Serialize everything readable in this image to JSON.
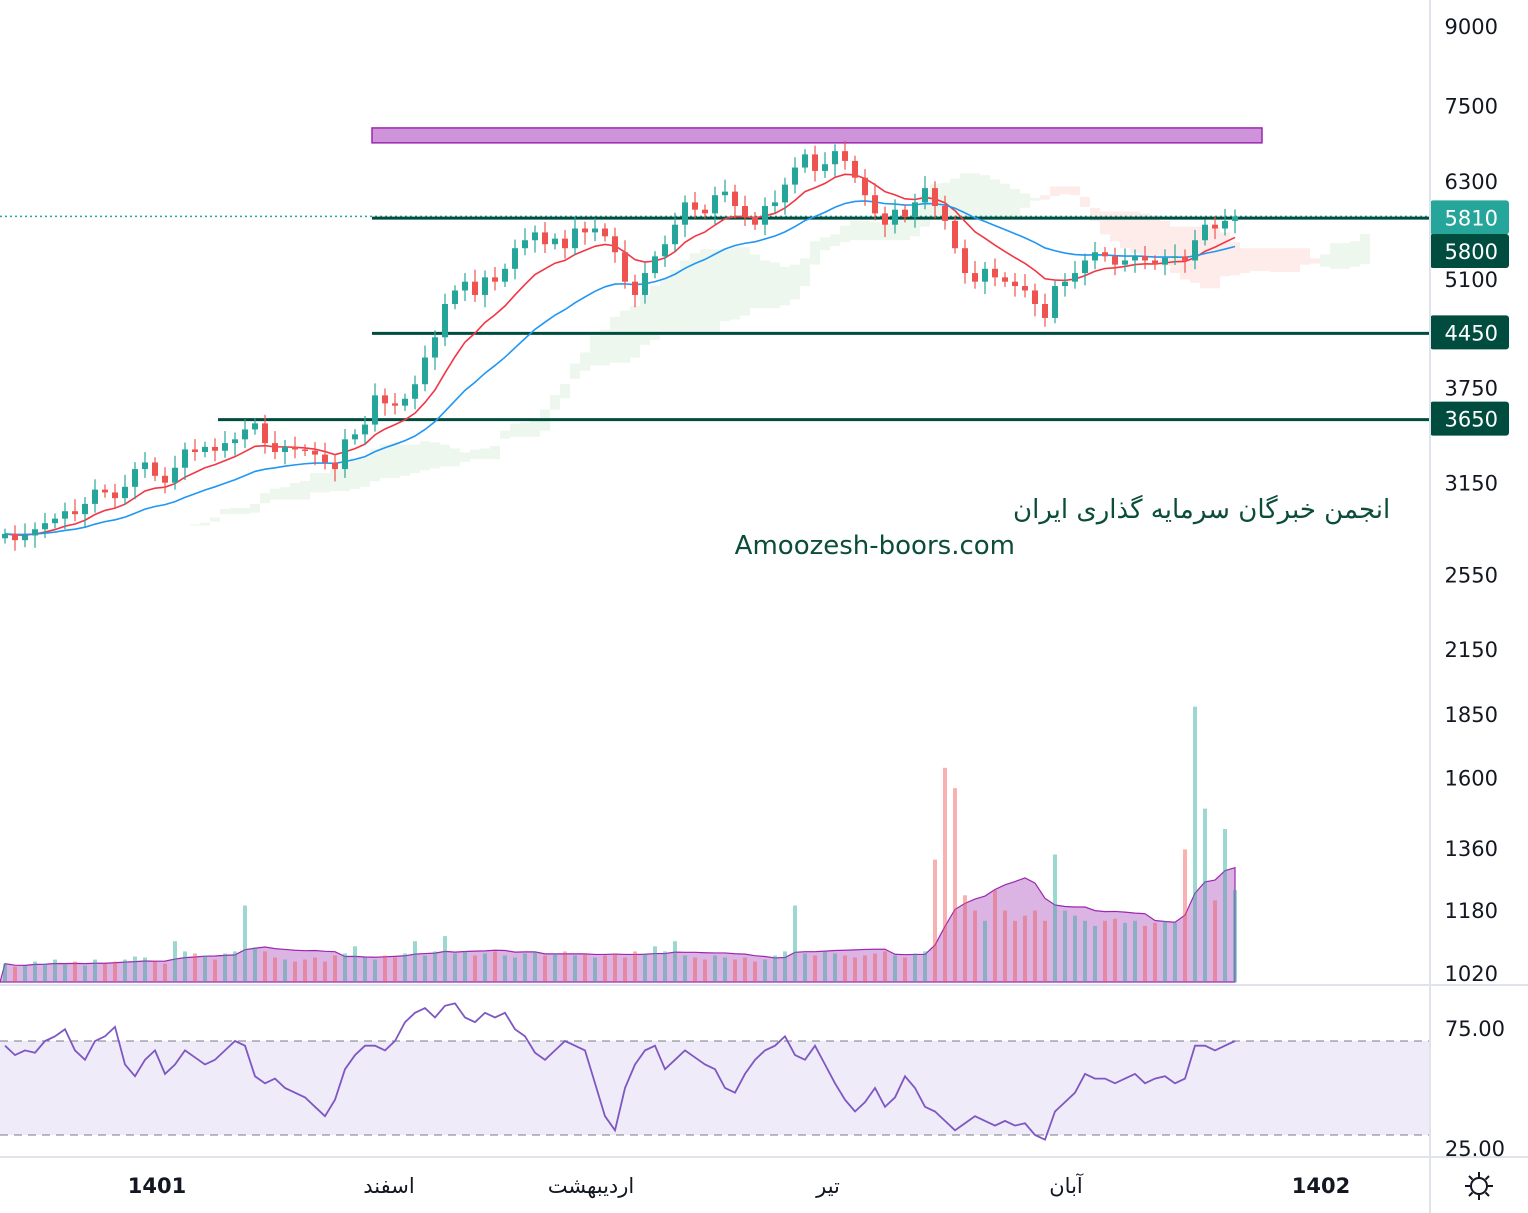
{
  "chart_data": {
    "type": "candlestick",
    "y_scale": "log",
    "price_axis": {
      "ticks": [
        9000,
        7500,
        6300,
        5100,
        3750,
        3150,
        2550,
        2150,
        1850,
        1600,
        1360,
        1180,
        1020
      ]
    },
    "time_axis": {
      "labels": [
        "1401",
        "اسفند",
        "اردیبهشت",
        "تیر",
        "آبان",
        "1402"
      ]
    },
    "closes": [
      2800,
      2760,
      2790,
      2830,
      2870,
      2900,
      2950,
      2930,
      3000,
      3100,
      3080,
      3040,
      3120,
      3250,
      3300,
      3200,
      3150,
      3260,
      3400,
      3380,
      3420,
      3390,
      3450,
      3480,
      3560,
      3610,
      3450,
      3380,
      3420,
      3400,
      3390,
      3360,
      3300,
      3250,
      3480,
      3520,
      3600,
      3850,
      3780,
      3760,
      3820,
      3950,
      4200,
      4400,
      4750,
      4900,
      5000,
      4850,
      5050,
      5000,
      5150,
      5400,
      5500,
      5600,
      5450,
      5520,
      5400,
      5650,
      5600,
      5650,
      5550,
      5350,
      5000,
      4850,
      5100,
      5300,
      5450,
      5700,
      6000,
      5900,
      5850,
      6100,
      6150,
      5950,
      5800,
      5700,
      5950,
      6000,
      6250,
      6500,
      6700,
      6450,
      6550,
      6750,
      6600,
      6350,
      6100,
      5850,
      5700,
      5900,
      5800,
      6000,
      6200,
      5950,
      5750,
      5400,
      5100,
      5000,
      5150,
      5050,
      5000,
      4950,
      4900,
      4750,
      4600,
      4950,
      5000,
      5100,
      5250,
      5350,
      5300,
      5200,
      5250,
      5300,
      5250,
      5200,
      5280,
      5300,
      5250,
      5500,
      5700,
      5650,
      5750,
      5810
    ],
    "volume": [
      18,
      15,
      16,
      20,
      18,
      22,
      17,
      20,
      16,
      22,
      18,
      20,
      22,
      25,
      24,
      20,
      18,
      40,
      30,
      28,
      26,
      22,
      28,
      30,
      75,
      34,
      30,
      24,
      22,
      20,
      22,
      24,
      20,
      26,
      28,
      35,
      24,
      22,
      26,
      24,
      28,
      40,
      26,
      30,
      45,
      28,
      30,
      26,
      28,
      30,
      26,
      24,
      28,
      30,
      26,
      28,
      30,
      26,
      28,
      24,
      26,
      28,
      24,
      30,
      28,
      35,
      30,
      40,
      26,
      24,
      22,
      26,
      24,
      22,
      24,
      20,
      22,
      26,
      30,
      75,
      28,
      26,
      30,
      28,
      26,
      24,
      26,
      28,
      30,
      26,
      24,
      28,
      30,
      120,
      210,
      190,
      85,
      70,
      60,
      90,
      70,
      60,
      65,
      70,
      60,
      125,
      70,
      65,
      60,
      55,
      60,
      62,
      58,
      60,
      55,
      58,
      60,
      58,
      130,
      270,
      170,
      80,
      150,
      90
    ],
    "rsi": [
      68,
      64,
      66,
      65,
      70,
      72,
      75,
      66,
      62,
      70,
      72,
      76,
      60,
      55,
      62,
      66,
      56,
      60,
      66,
      63,
      60,
      62,
      66,
      70,
      68,
      55,
      52,
      54,
      50,
      48,
      46,
      42,
      38,
      45,
      58,
      64,
      68,
      68,
      66,
      70,
      78,
      82,
      84,
      80,
      85,
      86,
      80,
      78,
      82,
      80,
      82,
      75,
      72,
      65,
      62,
      66,
      70,
      68,
      66,
      52,
      38,
      32,
      50,
      60,
      66,
      68,
      58,
      62,
      66,
      63,
      60,
      58,
      50,
      48,
      56,
      62,
      66,
      68,
      72,
      64,
      62,
      68,
      60,
      52,
      45,
      40,
      44,
      50,
      42,
      46,
      55,
      50,
      42,
      40,
      36,
      32,
      35,
      38,
      36,
      34,
      36,
      34,
      35,
      30,
      28,
      40,
      44,
      48,
      56,
      54,
      54,
      52,
      54,
      56,
      52,
      54,
      55,
      52,
      54,
      68,
      68,
      66,
      68,
      70
    ],
    "rsi_axis": {
      "ticks": [
        "75.00",
        "25.00"
      ],
      "upper_band": 70,
      "lower_band": 30
    },
    "resistance_zone": [
      6880,
      7120
    ],
    "levels": [
      {
        "value": 5810,
        "label": "5810",
        "color": "#26a69a",
        "style": "dotted"
      },
      {
        "value": 5800,
        "label": "5800",
        "color": "#004d40",
        "style": "solid"
      },
      {
        "value": 4450,
        "label": "4450",
        "color": "#004d40",
        "style": "solid"
      },
      {
        "value": 3650,
        "label": "3650",
        "color": "#004d40",
        "style": "solid"
      }
    ],
    "colors": {
      "up": "#26a69a",
      "down": "#ef5350",
      "ema_fast": "#f23645",
      "ema_slow": "#2196f3",
      "volume_ma": "#9c27b0",
      "rsi": "#7e57c2",
      "zone": "#ce93d8"
    }
  },
  "watermark": {
    "line1": "انجمن خبرگان سرمایه گذاری ایران",
    "line2": "Amoozesh-boors.com"
  },
  "settings_icon": "gear-icon"
}
